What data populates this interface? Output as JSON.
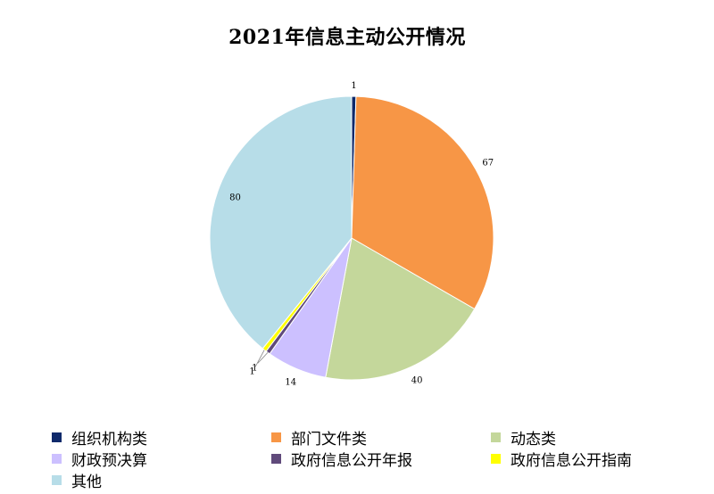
{
  "chart_data": {
    "type": "pie",
    "title": "2021年信息主动公开情况",
    "categories": [
      "组织机构类",
      "部门文件类",
      "动态类",
      "财政预决算",
      "政府信息公开年报",
      "政府信息公开指南",
      "其他"
    ],
    "values": [
      1,
      67,
      40,
      14,
      1,
      1,
      80
    ],
    "colors": [
      "#0f2a6b",
      "#f79646",
      "#c4d79b",
      "#ccc0ff",
      "#604a7b",
      "#ffff00",
      "#b7dde8"
    ],
    "legend_position": "bottom",
    "data_labels": true
  }
}
